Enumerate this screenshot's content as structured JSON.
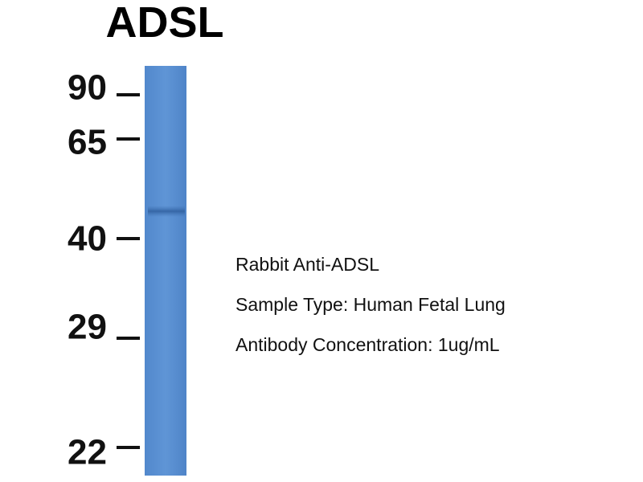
{
  "title": "ADSL",
  "markers": [
    90,
    65,
    40,
    29,
    22
  ],
  "annotations": [
    "Rabbit Anti-ADSL",
    "Sample Type: Human Fetal Lung",
    "Antibody Concentration: 1ug/mL"
  ]
}
